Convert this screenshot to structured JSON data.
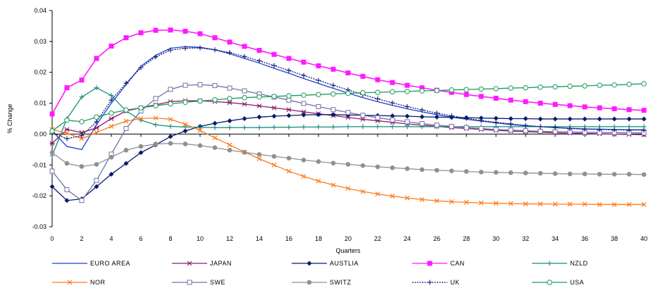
{
  "chart_data": {
    "type": "line",
    "xlabel": "Quarters",
    "ylabel": "% Change",
    "xlim": [
      0,
      40
    ],
    "ylim": [
      -0.03,
      0.04
    ],
    "xticks": [
      0,
      2,
      4,
      6,
      8,
      10,
      12,
      14,
      16,
      18,
      20,
      22,
      24,
      26,
      28,
      30,
      32,
      34,
      36,
      38,
      40
    ],
    "yticks": [
      -0.03,
      -0.02,
      -0.01,
      0.0,
      0.01,
      0.02,
      0.03,
      0.04
    ],
    "ytick_labels": [
      "-0.03",
      "-0.02",
      "-0.01",
      "0.00",
      "0.01",
      "0.02",
      "0.03",
      "0.04"
    ],
    "grid": false,
    "legend_position": "bottom",
    "x": [
      0,
      1,
      2,
      3,
      4,
      5,
      6,
      7,
      8,
      9,
      10,
      11,
      12,
      13,
      14,
      15,
      16,
      17,
      18,
      19,
      20,
      21,
      22,
      23,
      24,
      25,
      26,
      27,
      28,
      29,
      30,
      31,
      32,
      33,
      34,
      35,
      36,
      37,
      38,
      39,
      40
    ],
    "series": [
      {
        "name": "EURO AREA",
        "color": "#1f3fd6",
        "marker": "none",
        "values": [
          0.001,
          -0.004,
          -0.005,
          0.003,
          0.01,
          0.016,
          0.022,
          0.0255,
          0.0278,
          0.0283,
          0.0281,
          0.0273,
          0.026,
          0.0245,
          0.023,
          0.0213,
          0.0197,
          0.018,
          0.0164,
          0.0148,
          0.0133,
          0.0118,
          0.0105,
          0.0093,
          0.0082,
          0.0072,
          0.0063,
          0.0055,
          0.0048,
          0.0042,
          0.0036,
          0.0031,
          0.0027,
          0.0024,
          0.0021,
          0.0019,
          0.0017,
          0.0016,
          0.0015,
          0.0014,
          0.0014
        ]
      },
      {
        "name": "JAPAN",
        "color": "#8b1a6b",
        "marker": "star",
        "values": [
          -0.003,
          0.0015,
          0.0005,
          0.002,
          0.005,
          0.0075,
          0.0085,
          0.0095,
          0.0105,
          0.0108,
          0.0108,
          0.0105,
          0.0102,
          0.0097,
          0.0091,
          0.0085,
          0.0079,
          0.0072,
          0.0066,
          0.006,
          0.0054,
          0.0048,
          0.0043,
          0.0038,
          0.0033,
          0.0029,
          0.0025,
          0.0021,
          0.0018,
          0.0015,
          0.0012,
          0.001,
          0.0008,
          0.0006,
          0.0004,
          0.0003,
          0.0002,
          0.0001,
          0.0,
          -0.0001,
          -0.0002
        ]
      },
      {
        "name": "AUSTLIA",
        "color": "#0a1a6e",
        "marker": "diamond",
        "values": [
          -0.017,
          -0.0215,
          -0.021,
          -0.017,
          -0.013,
          -0.0095,
          -0.006,
          -0.0035,
          -0.0008,
          0.001,
          0.0025,
          0.0035,
          0.0043,
          0.005,
          0.0055,
          0.0058,
          0.006,
          0.0062,
          0.0063,
          0.0063,
          0.0062,
          0.0061,
          0.006,
          0.0059,
          0.0058,
          0.0056,
          0.0055,
          0.0054,
          0.0053,
          0.0052,
          0.0051,
          0.005,
          0.005,
          0.0049,
          0.0049,
          0.0049,
          0.0049,
          0.0049,
          0.0049,
          0.0049,
          0.0049
        ]
      },
      {
        "name": "CAN",
        "color": "#ff1aff",
        "marker": "square",
        "values": [
          0.0065,
          0.015,
          0.0175,
          0.0245,
          0.0285,
          0.0312,
          0.0328,
          0.0336,
          0.0337,
          0.0333,
          0.0325,
          0.0312,
          0.0298,
          0.0284,
          0.0271,
          0.0258,
          0.0245,
          0.0233,
          0.0221,
          0.021,
          0.0198,
          0.0187,
          0.0176,
          0.0167,
          0.0158,
          0.015,
          0.0142,
          0.0135,
          0.0128,
          0.0122,
          0.0116,
          0.011,
          0.0105,
          0.01,
          0.0096,
          0.0092,
          0.0088,
          0.0085,
          0.0082,
          0.0079,
          0.0077
        ]
      },
      {
        "name": "NZLD",
        "color": "#128a7a",
        "marker": "plus",
        "values": [
          -0.007,
          0.005,
          0.012,
          0.015,
          0.0125,
          0.0075,
          0.0045,
          0.003,
          0.0025,
          0.0023,
          0.0022,
          0.0021,
          0.0021,
          0.0021,
          0.0021,
          0.0022,
          0.0022,
          0.0023,
          0.0023,
          0.0023,
          0.0024,
          0.0024,
          0.0024,
          0.0024,
          0.0024,
          0.0024,
          0.0024,
          0.0024,
          0.0024,
          0.0024,
          0.0024,
          0.0024,
          0.0024,
          0.0024,
          0.0024,
          0.0024,
          0.0024,
          0.0024,
          0.0024,
          0.0024,
          0.0024
        ]
      },
      {
        "name": "NOR",
        "color": "#ff7a1a",
        "marker": "x",
        "values": [
          0.0015,
          0.0003,
          -0.0015,
          0.0005,
          0.0025,
          0.0042,
          0.005,
          0.0052,
          0.0048,
          0.0032,
          0.0012,
          -0.0012,
          -0.0035,
          -0.0058,
          -0.008,
          -0.01,
          -0.012,
          -0.0137,
          -0.0152,
          -0.0165,
          -0.0176,
          -0.0186,
          -0.0194,
          -0.0201,
          -0.0207,
          -0.0212,
          -0.0216,
          -0.0219,
          -0.0221,
          -0.0223,
          -0.0224,
          -0.0225,
          -0.0226,
          -0.0226,
          -0.0227,
          -0.0227,
          -0.0227,
          -0.0228,
          -0.0228,
          -0.0228,
          -0.0228
        ]
      },
      {
        "name": "SWE",
        "color": "#7070a8",
        "marker": "open-square",
        "values": [
          -0.012,
          -0.018,
          -0.0215,
          -0.015,
          -0.0065,
          0.0018,
          0.0075,
          0.0115,
          0.0145,
          0.0158,
          0.016,
          0.0157,
          0.0149,
          0.014,
          0.013,
          0.012,
          0.011,
          0.0099,
          0.0089,
          0.0079,
          0.007,
          0.0061,
          0.0053,
          0.0046,
          0.004,
          0.0034,
          0.0029,
          0.0025,
          0.0021,
          0.0018,
          0.0015,
          0.0013,
          0.0011,
          0.0009,
          0.0008,
          0.0007,
          0.0006,
          0.0005,
          0.0005,
          0.0004,
          0.0004
        ]
      },
      {
        "name": "SWITZ",
        "color": "#909090",
        "marker": "circle",
        "values": [
          -0.006,
          -0.0095,
          -0.0105,
          -0.0098,
          -0.0075,
          -0.0052,
          -0.004,
          -0.0032,
          -0.003,
          -0.0032,
          -0.0037,
          -0.0044,
          -0.0052,
          -0.0059,
          -0.0066,
          -0.0072,
          -0.0078,
          -0.0084,
          -0.0089,
          -0.0094,
          -0.0098,
          -0.0102,
          -0.0106,
          -0.0109,
          -0.0112,
          -0.0115,
          -0.0117,
          -0.0119,
          -0.0121,
          -0.0123,
          -0.0124,
          -0.0125,
          -0.0126,
          -0.0127,
          -0.0128,
          -0.0129,
          -0.0129,
          -0.013,
          -0.013,
          -0.013,
          -0.0131
        ]
      },
      {
        "name": "UK",
        "color": "#0a1a6e",
        "marker": "plus-dotted",
        "values": [
          0.0005,
          -0.0015,
          -0.0005,
          0.004,
          0.011,
          0.0165,
          0.0215,
          0.025,
          0.0272,
          0.0278,
          0.0279,
          0.0273,
          0.0264,
          0.0251,
          0.0237,
          0.0222,
          0.0206,
          0.019,
          0.0174,
          0.0158,
          0.0143,
          0.0128,
          0.0114,
          0.0101,
          0.0089,
          0.0078,
          0.0068,
          0.0059,
          0.0051,
          0.0044,
          0.0038,
          0.0033,
          0.0028,
          0.0024,
          0.0021,
          0.0018,
          0.0016,
          0.0015,
          0.0014,
          0.0013,
          0.0013
        ]
      },
      {
        "name": "USA",
        "color": "#1a9a5a",
        "marker": "open-circle",
        "values": [
          0.001,
          0.0045,
          0.004,
          0.0055,
          0.0068,
          0.0078,
          0.0085,
          0.0092,
          0.0098,
          0.0103,
          0.0107,
          0.0111,
          0.0115,
          0.0118,
          0.012,
          0.0122,
          0.0124,
          0.0126,
          0.0128,
          0.013,
          0.0132,
          0.0134,
          0.0135,
          0.0137,
          0.0138,
          0.014,
          0.0141,
          0.0143,
          0.0144,
          0.0146,
          0.0147,
          0.0149,
          0.015,
          0.0152,
          0.0153,
          0.0155,
          0.0156,
          0.0158,
          0.0159,
          0.0161,
          0.0163
        ]
      }
    ]
  }
}
